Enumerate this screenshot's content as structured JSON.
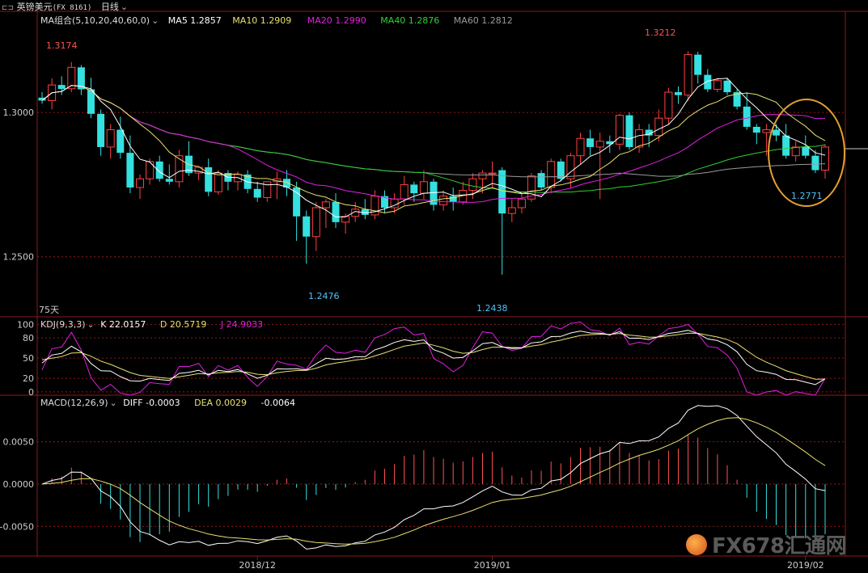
{
  "header": {
    "symbol_icon": "pair-icon",
    "instrument": "英镑美元",
    "code": "(FX 8161)",
    "period": "日线"
  },
  "ma_panel": {
    "group_label": "MA组合(5,10,20,40,60,0)",
    "ma5": "MA5 1.2857",
    "ma10": "MA10 1.2909",
    "ma20": "MA20 1.2990",
    "ma40": "MA40 1.2876",
    "ma60": "MA60 1.2812",
    "days_label": "75天",
    "colors": {
      "ma5": "#ffffff",
      "ma10": "#e8e070",
      "ma20": "#e020e0",
      "ma40": "#30d030",
      "ma60": "#9a9a9a"
    }
  },
  "kdj_panel": {
    "label": "KDJ(9,3,3)",
    "k": "K 22.0157",
    "d": "D 20.5719",
    "j": "J 24.9033"
  },
  "macd_panel": {
    "label": "MACD(12,26,9)",
    "diff": "DIFF -0.0003",
    "dea": "DEA 0.0029",
    "macd": "-0.0064"
  },
  "annotations": {
    "high_left": "1.3174",
    "high_right": "1.3212",
    "low_1": "1.2476",
    "low_2": "1.2438",
    "last_low": "1.2771"
  },
  "watermark": "FX678汇通网",
  "chart_data": [
    {
      "type": "candlestick",
      "ylim": [
        1.2295,
        1.335
      ],
      "y_ticks": [
        "1.3000",
        "1.2500"
      ],
      "x_ticks": [
        "2018/12",
        "2019/01",
        "2019/02"
      ],
      "candles": [
        [
          1.3051,
          1.307,
          1.303,
          1.3041
        ],
        [
          1.3041,
          1.3118,
          1.301,
          1.3095
        ],
        [
          1.3095,
          1.3125,
          1.306,
          1.3081
        ],
        [
          1.3082,
          1.3174,
          1.307,
          1.3156
        ],
        [
          1.3156,
          1.3164,
          1.306,
          1.308
        ],
        [
          1.308,
          1.312,
          1.298,
          1.2995
        ],
        [
          1.2995,
          1.301,
          1.285,
          1.288
        ],
        [
          1.288,
          1.296,
          1.284,
          1.294
        ],
        [
          1.294,
          1.2985,
          1.284,
          1.286
        ],
        [
          1.286,
          1.292,
          1.272,
          1.274
        ],
        [
          1.274,
          1.2785,
          1.27,
          1.277
        ],
        [
          1.277,
          1.284,
          1.275,
          1.283
        ],
        [
          1.283,
          1.285,
          1.276,
          1.277
        ],
        [
          1.277,
          1.282,
          1.275,
          1.276
        ],
        [
          1.276,
          1.287,
          1.274,
          1.285
        ],
        [
          1.285,
          1.29,
          1.278,
          1.279
        ],
        [
          1.279,
          1.2815,
          1.2765,
          1.281
        ],
        [
          1.281,
          1.284,
          1.271,
          1.2725
        ],
        [
          1.2725,
          1.28,
          1.2715,
          1.279
        ],
        [
          1.279,
          1.28,
          1.273,
          1.276
        ],
        [
          1.276,
          1.2795,
          1.273,
          1.2785
        ],
        [
          1.2785,
          1.28,
          1.272,
          1.2735
        ],
        [
          1.2735,
          1.276,
          1.269,
          1.2705
        ],
        [
          1.2705,
          1.276,
          1.269,
          1.276
        ],
        [
          1.276,
          1.2795,
          1.27,
          1.277
        ],
        [
          1.277,
          1.28,
          1.271,
          1.274
        ],
        [
          1.274,
          1.276,
          1.2555,
          1.264
        ],
        [
          1.264,
          1.266,
          1.2476,
          1.257
        ],
        [
          1.257,
          1.269,
          1.252,
          1.267
        ],
        [
          1.267,
          1.27,
          1.26,
          1.269
        ],
        [
          1.269,
          1.272,
          1.26,
          1.262
        ],
        [
          1.262,
          1.265,
          1.258,
          1.264
        ],
        [
          1.264,
          1.269,
          1.262,
          1.2665
        ],
        [
          1.2665,
          1.27,
          1.263,
          1.2645
        ],
        [
          1.2645,
          1.273,
          1.263,
          1.271
        ],
        [
          1.271,
          1.273,
          1.265,
          1.267
        ],
        [
          1.267,
          1.272,
          1.265,
          1.27
        ],
        [
          1.27,
          1.278,
          1.268,
          1.275
        ],
        [
          1.275,
          1.276,
          1.269,
          1.272
        ],
        [
          1.272,
          1.28,
          1.27,
          1.276
        ],
        [
          1.276,
          1.277,
          1.266,
          1.268
        ],
        [
          1.268,
          1.273,
          1.266,
          1.271
        ],
        [
          1.271,
          1.274,
          1.266,
          1.269
        ],
        [
          1.269,
          1.276,
          1.268,
          1.273
        ],
        [
          1.273,
          1.279,
          1.27,
          1.277
        ],
        [
          1.277,
          1.28,
          1.272,
          1.279
        ],
        [
          1.279,
          1.283,
          1.274,
          1.279
        ],
        [
          1.28,
          1.281,
          1.2438,
          1.265
        ],
        [
          1.265,
          1.27,
          1.262,
          1.267
        ],
        [
          1.267,
          1.272,
          1.265,
          1.27
        ],
        [
          1.27,
          1.279,
          1.269,
          1.278
        ],
        [
          1.279,
          1.28,
          1.273,
          1.274
        ],
        [
          1.274,
          1.284,
          1.272,
          1.283
        ],
        [
          1.283,
          1.284,
          1.276,
          1.277
        ],
        [
          1.277,
          1.286,
          1.274,
          1.285
        ],
        [
          1.285,
          1.293,
          1.282,
          1.291
        ],
        [
          1.291,
          1.294,
          1.285,
          1.288
        ],
        [
          1.288,
          1.293,
          1.27,
          1.29
        ],
        [
          1.29,
          1.292,
          1.286,
          1.289
        ],
        [
          1.289,
          1.2995,
          1.287,
          1.299
        ],
        [
          1.299,
          1.3,
          1.287,
          1.288
        ],
        [
          1.288,
          1.296,
          1.286,
          1.294
        ],
        [
          1.294,
          1.296,
          1.288,
          1.292
        ],
        [
          1.292,
          1.301,
          1.29,
          1.298
        ],
        [
          1.298,
          1.3085,
          1.296,
          1.307
        ],
        [
          1.307,
          1.309,
          1.303,
          1.306
        ],
        [
          1.306,
          1.3212,
          1.304,
          1.32
        ],
        [
          1.32,
          1.321,
          1.31,
          1.313
        ],
        [
          1.313,
          1.315,
          1.307,
          1.308
        ],
        [
          1.308,
          1.312,
          1.307,
          1.311
        ],
        [
          1.311,
          1.312,
          1.306,
          1.307
        ],
        [
          1.307,
          1.308,
          1.301,
          1.302
        ],
        [
          1.302,
          1.307,
          1.294,
          1.295
        ],
        [
          1.295,
          1.296,
          1.289,
          1.293
        ],
        [
          1.293,
          1.296,
          1.285,
          1.294
        ],
        [
          1.294,
          1.296,
          1.29,
          1.292
        ],
        [
          1.292,
          1.296,
          1.284,
          1.285
        ],
        [
          1.285,
          1.29,
          1.283,
          1.288
        ],
        [
          1.288,
          1.292,
          1.284,
          1.285
        ],
        [
          1.285,
          1.287,
          1.279,
          1.28
        ],
        [
          1.28,
          1.289,
          1.2771,
          1.288
        ]
      ]
    },
    {
      "type": "line",
      "name_label": "KDJ(9,3,3)",
      "ylim": [
        -5,
        110
      ],
      "y_ticks": [
        "100",
        "80",
        "50",
        "20",
        "0"
      ]
    },
    {
      "type": "bar",
      "name_label": "MACD(12,26,9)",
      "ylim": [
        -0.0085,
        0.0105
      ],
      "y_ticks": [
        "0.0050",
        "0.0000",
        "-0.0050"
      ]
    }
  ]
}
